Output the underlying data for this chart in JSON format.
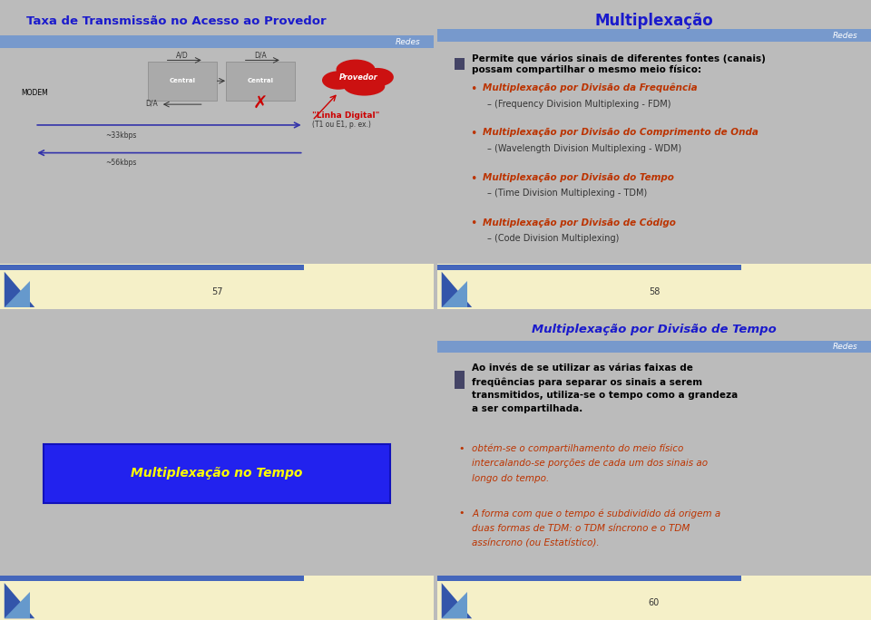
{
  "slide1": {
    "title": "Taxa de Transmissão no Acesso ao Provedor",
    "title_color": "#1a1aCC",
    "banner_color": "#7799CC",
    "banner_text": "Redes",
    "bg_color": "#F0F0F0",
    "page_number": "57"
  },
  "slide2": {
    "title": "Multiplexação",
    "title_color": "#1a1aCC",
    "banner_color": "#7799CC",
    "banner_text": "Redes",
    "bg_color": "#FFFFFF",
    "page_number": "58",
    "bullet_main_line1": "Permite que vários sinais de diferentes fontes (canais)",
    "bullet_main_line2": "possam compartilhar o mesmo meio físico:",
    "bullet_main_color": "#000000",
    "items": [
      {
        "bullet": "Multiplexação por Divisão da Frequência",
        "sub": "(Frequency Division Multiplexing - FDM)"
      },
      {
        "bullet": "Multiplexação por Divisão do Comprimento de Onda",
        "sub": "(Wavelength Division Multiplexing - WDM)"
      },
      {
        "bullet": "Multiplexação por Divisão do Tempo",
        "sub": "(Time Division Multiplexing - TDM)"
      },
      {
        "bullet": "Multiplexação por Divisão de Código",
        "sub": "(Code Division Multiplexing)"
      }
    ],
    "item_color": "#BB3300",
    "sub_color": "#333333"
  },
  "slide3_left": {
    "bg_color": "#EEEEEE",
    "box_text": "Multiplexação no Tempo",
    "box_bg": "#2222EE",
    "box_text_color": "#FFFF00"
  },
  "slide3_right": {
    "title": "Multiplexação por Divisão de Tempo",
    "title_color": "#1a1aCC",
    "banner_color": "#7799CC",
    "banner_text": "Redes",
    "bg_color": "#FFFFFF",
    "page_number": "60",
    "bullet_main_lines": [
      "Ao invés de se utilizar as várias faixas de",
      "freqüências para separar os sinais a serem",
      "transmitidos, utiliza-se o tempo como a grandeza",
      "a ser compartilhada."
    ],
    "bullet_main_color": "#000000",
    "sub_items": [
      [
        "obtém-se o compartilhamento do meio físico",
        "intercalando-se porções de cada um dos sinais ao",
        "longo do tempo."
      ],
      [
        "A forma com que o tempo é subdividido dá origem a",
        "duas formas de TDM: o TDM síncrono e o TDM",
        "assíncrono (ou Estatístico)."
      ]
    ],
    "sub_item_color": "#BB3300"
  },
  "outer_bg": "#BBBBBB",
  "divider_color": "#999999",
  "footer_bg": "#F5F0C8",
  "footer_stripe_left": "#4466BB",
  "footer_stripe_right": "#88AADD"
}
